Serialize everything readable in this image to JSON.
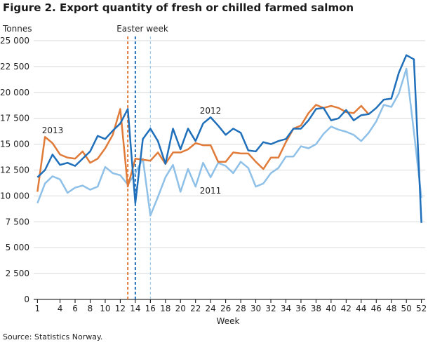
{
  "chart_data": {
    "type": "line",
    "title": "Figure 2. Export quantity of fresh or chilled farmed salmon",
    "y_label": "Tonnes",
    "x_label": "Week",
    "source": "Source: Statistics Norway.",
    "easter_label": "Easter week",
    "x": [
      1,
      2,
      3,
      4,
      5,
      6,
      7,
      8,
      9,
      10,
      11,
      12,
      13,
      14,
      15,
      16,
      17,
      18,
      19,
      20,
      21,
      22,
      23,
      24,
      25,
      26,
      27,
      28,
      29,
      30,
      31,
      32,
      33,
      34,
      35,
      36,
      37,
      38,
      39,
      40,
      41,
      42,
      43,
      44,
      45,
      46,
      47,
      48,
      49,
      50,
      51,
      52
    ],
    "series": [
      {
        "name": "2011",
        "color": "#8fc0e8",
        "values": [
          9300,
          11200,
          11900,
          11600,
          10300,
          10800,
          11000,
          10600,
          10900,
          12800,
          12200,
          12000,
          11100,
          12200,
          13600,
          8100,
          9900,
          11800,
          13000,
          10400,
          12600,
          10900,
          13200,
          11800,
          13200,
          12900,
          12200,
          13300,
          12700,
          10900,
          11200,
          12200,
          12700,
          13800,
          13800,
          14800,
          14600,
          15000,
          16000,
          16700,
          16400,
          16200,
          15900,
          15300,
          16100,
          17200,
          18800,
          18600,
          19900,
          22300,
          16200,
          9800
        ]
      },
      {
        "name": "2013",
        "color": "#e07b39",
        "values": [
          10400,
          15700,
          15100,
          14000,
          13700,
          13600,
          14300,
          13200,
          13600,
          14600,
          15900,
          18400,
          10900,
          13600,
          13500,
          13400,
          14200,
          13100,
          14200,
          14200,
          14500,
          15100,
          14900,
          14900,
          13300,
          13300,
          14200,
          14100,
          14100,
          13300,
          12600,
          13700,
          13700,
          15200,
          16500,
          16800,
          18000,
          18800,
          18500,
          18700,
          18500,
          18100,
          18000,
          18700,
          17900,
          null,
          null,
          null,
          null,
          null,
          null,
          null
        ]
      },
      {
        "name": "2012",
        "color": "#1f6fba",
        "values": [
          11800,
          12500,
          14000,
          13000,
          13200,
          12900,
          13600,
          14300,
          15800,
          15500,
          16300,
          17000,
          18400,
          9300,
          15500,
          16500,
          15300,
          13100,
          16500,
          14500,
          16500,
          15300,
          17000,
          17600,
          16800,
          15900,
          16500,
          16100,
          14400,
          14300,
          15200,
          15000,
          15300,
          15500,
          16500,
          16500,
          17300,
          18400,
          18500,
          17300,
          17500,
          18300,
          17300,
          17800,
          17900,
          18500,
          19300,
          19400,
          21900,
          23600,
          23200,
          7400
        ]
      }
    ],
    "easter_weeks": [
      {
        "week": 13,
        "color": "#e07b39"
      },
      {
        "week": 14,
        "color": "#1f6fba"
      },
      {
        "week": 16,
        "color": "#8fc0e8"
      }
    ],
    "xlim": [
      0.5,
      52.5
    ],
    "xticks": [
      1,
      4,
      6,
      8,
      10,
      12,
      14,
      16,
      18,
      20,
      22,
      24,
      26,
      28,
      30,
      32,
      34,
      36,
      38,
      40,
      42,
      44,
      46,
      48,
      50,
      52
    ],
    "ylim": [
      0,
      25000
    ],
    "yticks": [
      0,
      {
        "value": 2500,
        "label": "2 500"
      },
      {
        "value": 5000,
        "label": "5 000"
      },
      {
        "value": 7500,
        "label": "7 500"
      },
      {
        "value": 10000,
        "label": "10 000"
      },
      {
        "value": 12500,
        "label": "12 500"
      },
      {
        "value": 15000,
        "label": "15 000"
      },
      {
        "value": 17500,
        "label": "17 500"
      },
      {
        "value": 20000,
        "label": "20 000"
      },
      {
        "value": 22500,
        "label": "22 500"
      },
      {
        "value": 25000,
        "label": "25 000"
      }
    ],
    "grid": true
  }
}
